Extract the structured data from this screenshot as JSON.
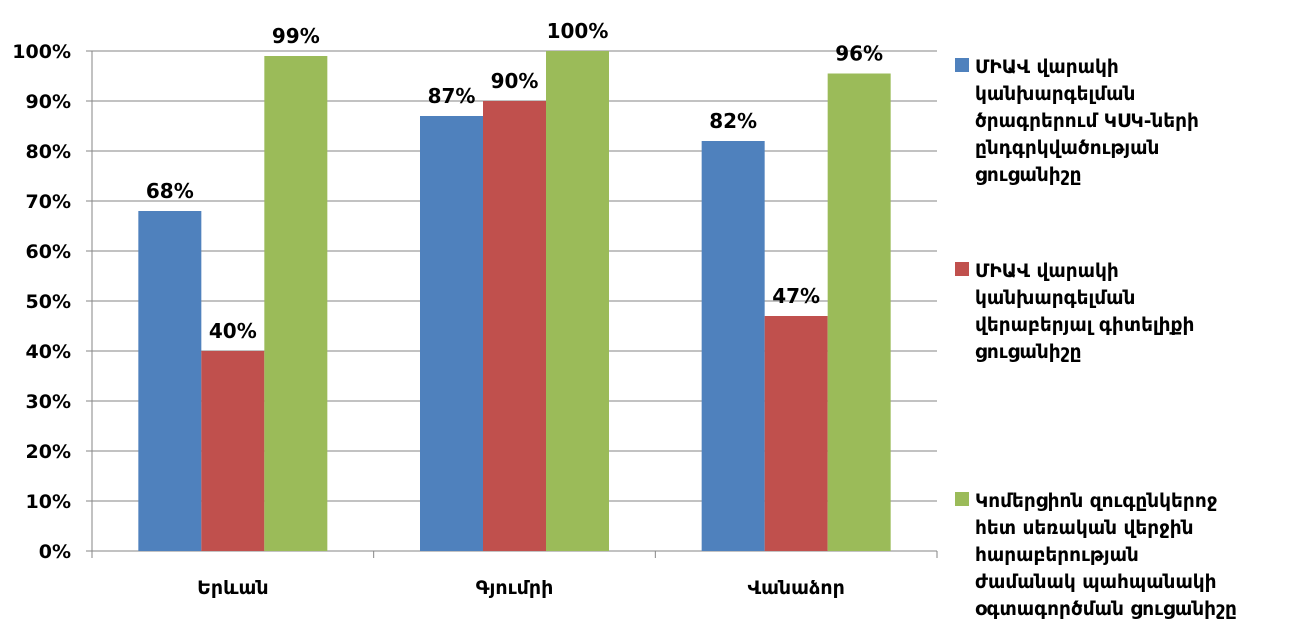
{
  "chart_data": {
    "type": "bar",
    "categories": [
      "Երևան",
      "Գյումրի",
      "Վանաձոր"
    ],
    "series": [
      {
        "name": "ՄԻԱՎ վարակի\nկանխարգելման\nծրագրերում ԿՍԿ-ների\nընդգրկվածության\nցուցանիշը",
        "values": [
          68,
          87,
          82
        ],
        "labels": [
          "68%",
          "87%",
          "82%"
        ],
        "color": "#4F81BD"
      },
      {
        "name": "ՄԻԱՎ վարակի\nկանխարգելման\nվերաբերյալ գիտելիքի\nցուցանիշը",
        "values": [
          40,
          90,
          47
        ],
        "labels": [
          "40%",
          "90%",
          "47%"
        ],
        "color": "#C0504D"
      },
      {
        "name": "Կոմերցիոն զուգընկերոջ\nհետ սեռական վերջին\nհարաբերության\nժամանակ պահպանակի\nօգտագործման ցուցանիշը",
        "values": [
          99,
          100,
          95.5
        ],
        "labels": [
          "99%",
          "100%",
          "96%"
        ],
        "color": "#9BBB59"
      }
    ],
    "yticks": [
      "0%",
      "10%",
      "20%",
      "30%",
      "40%",
      "50%",
      "60%",
      "70%",
      "80%",
      "90%",
      "100%"
    ],
    "ylim": [
      0,
      100
    ],
    "grid": true,
    "legend_position": "right"
  }
}
